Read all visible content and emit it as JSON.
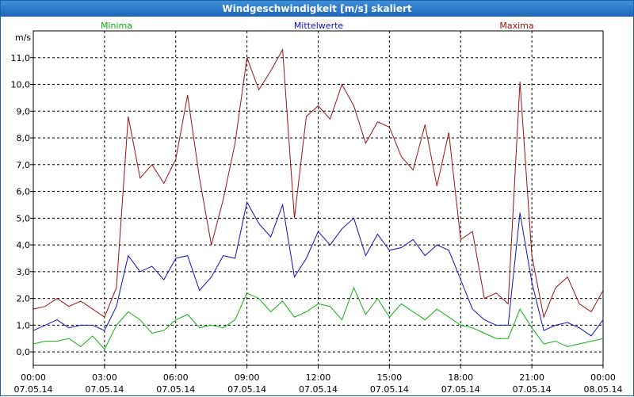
{
  "window": {
    "title": "Windgeschwindigkeit [m/s] skaliert"
  },
  "chart_data": {
    "type": "line",
    "title": "Windgeschwindigkeit [m/s] skaliert",
    "ylabel": "m/s",
    "ylim": [
      -0.5,
      12
    ],
    "xlim_hours": [
      0,
      24
    ],
    "grid": true,
    "legend_placement": "top",
    "y_ticks": [
      "0,0",
      "1,0",
      "2,0",
      "3,0",
      "4,0",
      "5,0",
      "6,0",
      "7,0",
      "8,0",
      "9,0",
      "10,0",
      "11,0"
    ],
    "x_ticks": [
      {
        "time": "00:00",
        "date": "07.05.14"
      },
      {
        "time": "03:00",
        "date": "07.05.14"
      },
      {
        "time": "06:00",
        "date": "07.05.14"
      },
      {
        "time": "09:00",
        "date": "07.05.14"
      },
      {
        "time": "12:00",
        "date": "07.05.14"
      },
      {
        "time": "15:00",
        "date": "07.05.14"
      },
      {
        "time": "18:00",
        "date": "07.05.14"
      },
      {
        "time": "21:00",
        "date": "07.05.14"
      },
      {
        "time": "00:00",
        "date": "08.05.14"
      }
    ],
    "x_hours": [
      0,
      0.5,
      1,
      1.5,
      2,
      2.5,
      3,
      3.5,
      4,
      4.5,
      5,
      5.5,
      6,
      6.5,
      7,
      7.5,
      8,
      8.5,
      9,
      9.5,
      10,
      10.5,
      11,
      11.5,
      12,
      12.5,
      13,
      13.5,
      14,
      14.5,
      15,
      15.5,
      16,
      16.5,
      17,
      17.5,
      18,
      18.5,
      19,
      19.5,
      20,
      20.5,
      21,
      21.5,
      22,
      22.5,
      23,
      23.5,
      24
    ],
    "series": [
      {
        "name": "Minima",
        "color": "#10b010",
        "values": [
          0.3,
          0.4,
          0.4,
          0.5,
          0.2,
          0.6,
          0.1,
          1.0,
          1.5,
          1.2,
          0.7,
          0.8,
          1.2,
          1.4,
          0.9,
          1.0,
          0.9,
          1.2,
          2.2,
          2.0,
          1.5,
          1.9,
          1.3,
          1.5,
          1.8,
          1.7,
          1.2,
          2.4,
          1.4,
          2.0,
          1.3,
          1.8,
          1.5,
          1.2,
          1.6,
          1.3,
          1.0,
          0.9,
          0.7,
          0.5,
          0.5,
          1.6,
          0.9,
          0.3,
          0.4,
          0.2,
          0.3,
          0.4,
          0.5
        ]
      },
      {
        "name": "Mittelwerte",
        "color": "#1010c0",
        "values": [
          0.8,
          1.0,
          1.2,
          0.9,
          1.0,
          1.0,
          0.8,
          1.7,
          3.6,
          3.0,
          3.2,
          2.7,
          3.5,
          3.6,
          2.3,
          2.8,
          3.6,
          3.5,
          5.6,
          4.8,
          4.3,
          5.5,
          2.8,
          3.5,
          4.5,
          4.0,
          4.6,
          5.0,
          3.6,
          4.4,
          3.8,
          3.9,
          4.2,
          3.6,
          4.0,
          3.8,
          2.7,
          1.6,
          1.2,
          1.0,
          1.0,
          5.2,
          2.6,
          0.8,
          1.0,
          1.1,
          0.9,
          0.6,
          1.2
        ]
      },
      {
        "name": "Maxima",
        "color": "#a01010",
        "values": [
          1.6,
          1.7,
          2.0,
          1.7,
          1.9,
          1.6,
          1.3,
          2.4,
          8.8,
          6.5,
          7.0,
          6.3,
          7.2,
          9.6,
          6.5,
          4.0,
          5.7,
          7.8,
          11.0,
          9.8,
          10.5,
          11.3,
          5.0,
          8.8,
          9.2,
          8.7,
          10.0,
          9.2,
          7.8,
          8.6,
          8.4,
          7.3,
          6.8,
          8.5,
          6.2,
          8.2,
          4.2,
          4.5,
          2.0,
          2.2,
          1.8,
          10.1,
          3.6,
          1.3,
          2.4,
          2.8,
          1.8,
          1.5,
          2.3
        ]
      }
    ]
  }
}
